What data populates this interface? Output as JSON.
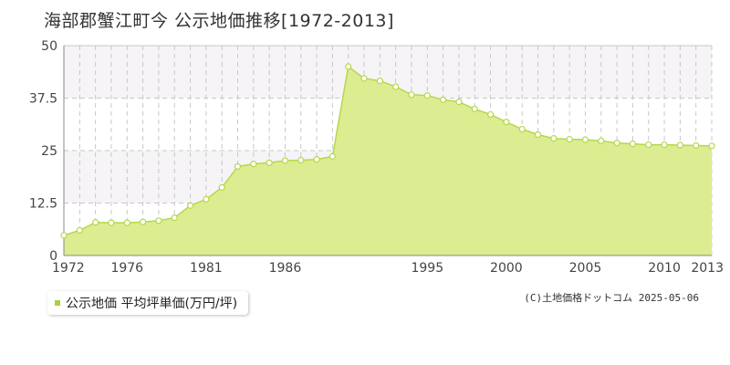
{
  "title": "海部郡蟹江町今 公示地価推移[1972-2013]",
  "legend_label": "公示地価 平均坪単価(万円/坪)",
  "credit": "(C)土地価格ドットコム 2025-05-06",
  "colors": {
    "area_fill": "#dcec90",
    "line": "#b5d84c",
    "point_fill": "#ffffff",
    "grid": "#c8c8c8",
    "band": "#f6f4f6",
    "legend_swatch": "#a8d23a"
  },
  "chart_data": {
    "type": "area",
    "title": "海部郡蟹江町今 公示地価推移[1972-2013]",
    "xlabel": "",
    "ylabel": "",
    "xlim": [
      1972,
      2013
    ],
    "ylim": [
      0,
      50
    ],
    "yticks": [
      "0",
      "12.5",
      "25",
      "37.5",
      "50"
    ],
    "xticks": [
      "1972",
      "1976",
      "1981",
      "1986",
      "1995",
      "2000",
      "2005",
      "2010",
      "2013"
    ],
    "grid": true,
    "legend_position": "bottom-left",
    "series": [
      {
        "name": "公示地価 平均坪単価(万円/坪)",
        "x": [
          1972,
          1973,
          1974,
          1975,
          1976,
          1977,
          1978,
          1979,
          1980,
          1981,
          1982,
          1983,
          1984,
          1985,
          1986,
          1987,
          1988,
          1989,
          1990,
          1991,
          1992,
          1993,
          1994,
          1995,
          1996,
          1997,
          1998,
          1999,
          2000,
          2001,
          2002,
          2003,
          2004,
          2005,
          2006,
          2007,
          2008,
          2009,
          2010,
          2011,
          2012,
          2013
        ],
        "values": [
          4.8,
          6.0,
          7.9,
          7.8,
          7.8,
          8.0,
          8.3,
          9.0,
          11.9,
          13.4,
          16.2,
          21.2,
          21.8,
          22.1,
          22.6,
          22.7,
          22.9,
          23.6,
          45.0,
          42.2,
          41.6,
          40.2,
          38.3,
          38.1,
          37.1,
          36.6,
          34.9,
          33.6,
          31.8,
          30.1,
          28.8,
          27.9,
          27.7,
          27.6,
          27.3,
          26.8,
          26.6,
          26.4,
          26.4,
          26.3,
          26.2,
          26.1
        ]
      }
    ]
  }
}
